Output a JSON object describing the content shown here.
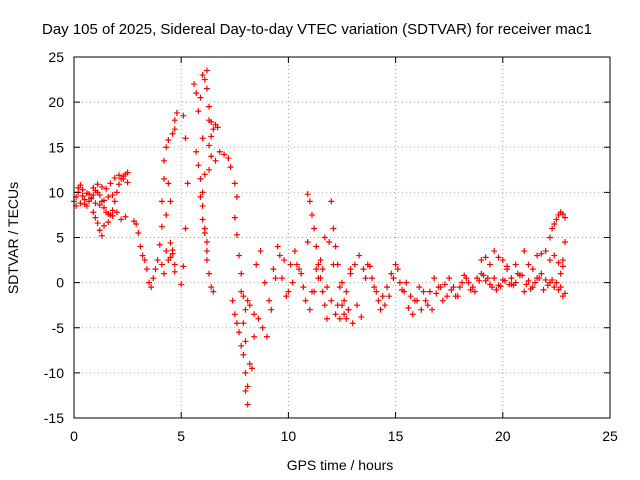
{
  "chart_data": {
    "type": "scatter",
    "title": "Day 105 of 2025, Sidereal Day-to-day VTEC variation (SDTVAR) for receiver mac1",
    "xlabel": "GPS time / hours",
    "ylabel": "SDTVAR / TECUs",
    "xlim": [
      0,
      25
    ],
    "ylim": [
      -15,
      25
    ],
    "xticks": [
      0,
      5,
      10,
      15,
      20,
      25
    ],
    "yticks": [
      -15,
      -10,
      -5,
      0,
      5,
      10,
      15,
      20,
      25
    ],
    "xtick_labels": [
      "0",
      "5",
      "10",
      "15",
      "20",
      "25"
    ],
    "ytick_labels": [
      "-15",
      "-10",
      "-5",
      "0",
      "5",
      "10",
      "15",
      "20",
      "25"
    ],
    "grid": true,
    "marker": "+",
    "color": "#ff0000",
    "series": [
      {
        "name": "SDTVAR",
        "x": [
          0.0,
          0.1,
          0.2,
          0.3,
          0.4,
          0.5,
          0.6,
          0.7,
          0.8,
          0.9,
          1.0,
          1.1,
          1.2,
          1.3,
          1.4,
          1.5,
          1.6,
          1.7,
          1.8,
          1.9,
          2.0,
          2.1,
          2.2,
          2.3,
          2.4,
          2.5,
          0.1,
          0.3,
          0.5,
          0.7,
          0.9,
          1.1,
          1.3,
          1.5,
          1.7,
          1.9,
          2.1,
          2.3,
          2.5,
          0.2,
          0.4,
          0.6,
          0.8,
          1.0,
          1.2,
          1.4,
          1.6,
          1.8,
          0.9,
          1.0,
          1.1,
          1.2,
          1.3,
          1.4,
          1.6,
          1.8,
          2.0,
          2.2,
          2.4,
          2.8,
          2.9,
          3.0,
          3.1,
          3.2,
          3.3,
          3.4,
          3.5,
          3.6,
          3.7,
          3.8,
          3.9,
          4.0,
          4.1,
          4.1,
          4.2,
          4.2,
          4.3,
          4.4,
          4.5,
          4.6,
          4.6,
          4.7,
          4.7,
          4.8,
          4.1,
          4.2,
          4.3,
          4.4,
          4.5,
          4.6,
          4.7,
          4.7,
          4.5,
          4.4,
          4.3,
          5.0,
          5.1,
          5.2,
          5.3,
          5.2,
          5.1,
          5.6,
          5.7,
          5.8,
          5.9,
          6.0,
          6.0,
          6.1,
          6.1,
          6.2,
          6.2,
          6.3,
          6.3,
          6.4,
          6.4,
          6.5,
          6.6,
          6.7,
          5.7,
          5.8,
          5.9,
          6.0,
          6.1,
          6.2,
          6.3,
          6.4,
          6.5,
          6.6,
          5.9,
          6.0,
          6.0,
          6.1,
          6.2,
          6.2,
          6.3,
          6.3,
          6.4,
          6.8,
          7.0,
          7.2,
          7.3,
          7.5,
          7.6,
          7.8,
          7.9,
          8.0,
          7.4,
          7.5,
          7.6,
          7.7,
          7.8,
          7.9,
          8.0,
          8.0,
          8.1,
          8.1,
          8.2,
          8.3,
          8.4,
          7.5,
          7.6,
          7.7,
          7.8,
          7.9,
          8.0,
          8.1,
          8.2,
          8.4,
          8.6,
          8.8,
          9.0,
          9.2,
          9.4,
          9.6,
          9.8,
          10.0,
          10.2,
          10.4,
          10.6,
          10.8,
          11.0,
          11.2,
          11.4,
          11.6,
          11.8,
          12.0,
          12.2,
          12.4,
          12.6,
          12.8,
          13.0,
          13.2,
          13.4,
          8.5,
          8.7,
          8.9,
          9.1,
          9.3,
          9.5,
          9.7,
          9.9,
          10.1,
          10.3,
          10.5,
          10.7,
          10.9,
          11.1,
          11.3,
          11.5,
          11.7,
          11.9,
          12.1,
          12.3,
          12.5,
          12.7,
          12.9,
          13.1,
          13.3,
          10.9,
          11.0,
          11.1,
          11.2,
          11.3,
          11.4,
          11.5,
          11.6,
          11.7,
          11.8,
          12.0,
          12.1,
          12.2,
          12.3,
          12.4,
          12.5,
          12.6,
          12.7,
          12.8,
          12.9,
          13.5,
          13.7,
          13.9,
          14.1,
          14.3,
          14.5,
          14.7,
          14.9,
          15.1,
          15.3,
          15.5,
          15.7,
          15.9,
          16.1,
          16.3,
          16.5,
          16.7,
          16.9,
          17.1,
          17.3,
          17.5,
          17.7,
          17.9,
          18.1,
          18.3,
          18.5,
          18.7,
          18.9,
          19.1,
          19.3,
          19.5,
          19.7,
          19.9,
          20.1,
          20.3,
          20.5,
          20.7,
          20.9,
          21.1,
          21.3,
          21.5,
          21.7,
          21.9,
          22.1,
          22.3,
          22.5,
          22.7,
          22.9,
          13.6,
          13.8,
          14.0,
          14.2,
          14.4,
          14.6,
          14.8,
          15.0,
          15.2,
          15.4,
          15.6,
          15.8,
          16.0,
          16.2,
          16.4,
          16.6,
          16.8,
          17.0,
          17.2,
          17.4,
          17.6,
          17.8,
          18.0,
          18.2,
          18.4,
          18.6,
          18.8,
          19.0,
          19.2,
          19.4,
          19.6,
          19.8,
          20.0,
          20.2,
          20.4,
          20.6,
          20.8,
          21.0,
          21.2,
          21.4,
          21.6,
          21.8,
          22.0,
          22.2,
          22.4,
          22.6,
          22.8,
          19.0,
          19.2,
          19.4,
          19.6,
          19.8,
          20.0,
          20.2,
          20.4,
          20.6,
          20.8,
          21.0,
          21.2,
          21.4,
          21.6,
          21.8,
          22.0,
          22.2,
          22.4,
          22.6,
          22.8,
          22.2,
          22.3,
          22.4,
          22.5,
          22.6,
          22.7,
          22.8,
          22.9,
          22.9,
          22.8,
          22.7
        ],
        "y": [
          9.0,
          9.5,
          10.5,
          10.8,
          9.6,
          8.7,
          8.5,
          9.0,
          9.4,
          9.7,
          10.2,
          10.0,
          9.7,
          9.0,
          8.3,
          7.8,
          7.6,
          7.5,
          8.0,
          9.0,
          10.0,
          10.9,
          11.5,
          11.8,
          12.0,
          12.2,
          8.5,
          8.8,
          9.2,
          9.8,
          10.5,
          10.9,
          10.6,
          10.4,
          11.0,
          11.6,
          11.9,
          11.5,
          11.1,
          10.0,
          10.3,
          9.9,
          9.3,
          8.8,
          8.6,
          9.1,
          9.5,
          9.7,
          7.8,
          7.2,
          6.6,
          5.8,
          5.2,
          6.3,
          6.7,
          7.4,
          7.8,
          7.0,
          7.3,
          6.8,
          6.5,
          5.5,
          4.0,
          3.0,
          2.5,
          1.5,
          0.0,
          -0.5,
          0.5,
          1.5,
          2.5,
          4.2,
          6.2,
          9.0,
          11.5,
          13.5,
          15.0,
          15.8,
          4.4,
          3.6,
          16.5,
          17.0,
          18.0,
          18.8,
          2.0,
          1.0,
          3.5,
          2.5,
          2.8,
          3.2,
          2.0,
          1.2,
          9.0,
          11.0,
          7.5,
          -0.2,
          1.8,
          6.0,
          11.0,
          16.0,
          18.5,
          22.0,
          21.0,
          19.0,
          20.5,
          23.0,
          16.0,
          22.5,
          12.0,
          23.5,
          21.5,
          19.5,
          18.0,
          17.8,
          16.2,
          17.0,
          17.5,
          17.2,
          14.5,
          13.0,
          9.5,
          7.0,
          5.5,
          3.5,
          1.0,
          -0.5,
          -1.0,
          13.5,
          11.5,
          10.0,
          8.5,
          6.0,
          4.5,
          2.5,
          12.5,
          15.2,
          14.0,
          14.5,
          14.2,
          13.8,
          12.8,
          11.0,
          9.5,
          -1.0,
          -4.5,
          -6.5,
          -2.0,
          -3.5,
          -4.5,
          -5.5,
          -7.0,
          -8.0,
          -10.0,
          -12.0,
          -13.5,
          -11.5,
          -9.0,
          -9.5,
          -6.0,
          7.2,
          5.3,
          3.0,
          1.0,
          -1.5,
          -3.0,
          -2.0,
          -2.5,
          -3.5,
          -4.0,
          -5.0,
          -6.0,
          -3.0,
          0.5,
          3.0,
          2.5,
          -1.0,
          0.0,
          2.0,
          1.0,
          -2.0,
          -3.0,
          -1.0,
          0.5,
          1.5,
          -0.5,
          -2.0,
          -3.5,
          -4.0,
          -2.0,
          -3.0,
          -4.5,
          -2.5,
          -3.8,
          2.0,
          3.5,
          0.0,
          -2.0,
          1.5,
          4.0,
          0.5,
          -1.5,
          2.0,
          3.5,
          1.5,
          -0.5,
          4.5,
          -1.0,
          1.5,
          2.5,
          5.0,
          4.5,
          2.0,
          -2.5,
          0.0,
          -1.0,
          1.5,
          2.0,
          3.0,
          9.8,
          9.0,
          7.5,
          6.0,
          4.0,
          2.0,
          0.5,
          -1.0,
          -2.5,
          -4.0,
          9.0,
          6.0,
          4.0,
          2.0,
          -0.5,
          -2.5,
          -3.5,
          -4.0,
          -3.0,
          1.0,
          1.5,
          2.0,
          0.5,
          -1.0,
          -3.0,
          -2.5,
          -1.5,
          0.5,
          1.5,
          -0.8,
          0.0,
          -1.5,
          -2.0,
          -0.5,
          -1.0,
          -2.5,
          -3.0,
          -1.2,
          -0.5,
          -0.2,
          0.5,
          -0.5,
          -1.5,
          0.0,
          0.5,
          -0.8,
          -1.0,
          0.2,
          0.8,
          0.5,
          -0.5,
          -0.8,
          -0.4,
          0.2,
          -0.2,
          -0.3,
          1.0,
          0.8,
          -0.2,
          -0.7,
          0.0,
          0.5,
          -0.8,
          -0.3,
          0.3,
          0.0,
          -0.5,
          -1.2,
          0.5,
          1.8,
          -0.5,
          -2.0,
          -1.5,
          -0.5,
          1.0,
          2.0,
          0.0,
          -1.0,
          -2.8,
          -3.5,
          -2.0,
          -3.0,
          -2.0,
          -1.0,
          0.5,
          -0.5,
          -2.0,
          -1.5,
          -0.8,
          -1.5,
          -0.5,
          0.8,
          0.0,
          -0.5,
          0.5,
          1.0,
          0.2,
          -0.2,
          0.5,
          -0.3,
          0.3,
          1.8,
          -0.2,
          0.0,
          0.8,
          -1.0,
          0.2,
          -0.5,
          0.5,
          1.0,
          0.3,
          0.0,
          -0.5,
          -0.8,
          -1.5,
          2.5,
          2.8,
          2.0,
          3.5,
          2.8,
          2.5,
          1.5,
          0.5,
          2.0,
          0.8,
          3.5,
          2.0,
          1.5,
          3.0,
          3.2,
          3.5,
          2.5,
          3.0,
          2.2,
          1.8,
          5.0,
          6.0,
          6.5,
          7.0,
          7.5,
          7.8,
          7.6,
          7.2,
          4.5,
          2.5,
          1.0
        ]
      }
    ]
  }
}
